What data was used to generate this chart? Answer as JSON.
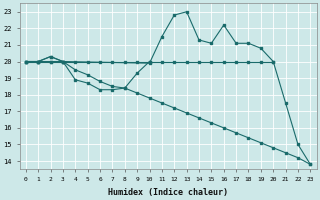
{
  "xlabel": "Humidex (Indice chaleur)",
  "bg_color": "#cde8e8",
  "grid_color": "#b0d4d4",
  "line_color": "#1a6b6b",
  "xlim": [
    -0.5,
    23.5
  ],
  "ylim": [
    13.5,
    23.5
  ],
  "yticks": [
    14,
    15,
    16,
    17,
    18,
    19,
    20,
    21,
    22,
    23
  ],
  "xticks": [
    0,
    1,
    2,
    3,
    4,
    5,
    6,
    7,
    8,
    9,
    10,
    11,
    12,
    13,
    14,
    15,
    16,
    17,
    18,
    19,
    20,
    21,
    22,
    23
  ],
  "line_flat_x": [
    0,
    1,
    2,
    3,
    4,
    5,
    6,
    7,
    8,
    9,
    10,
    11,
    12,
    13,
    14,
    15,
    16,
    17,
    18,
    19,
    20
  ],
  "line_flat_y": [
    20,
    20,
    20,
    20,
    20,
    20,
    20,
    20,
    20,
    20,
    20,
    20,
    20,
    20,
    20,
    20,
    20,
    20,
    20,
    20,
    20
  ],
  "line_wavy_x": [
    0,
    1,
    2,
    3,
    10,
    11,
    12,
    13,
    14,
    15,
    16,
    17,
    18,
    19,
    20,
    21,
    22,
    23
  ],
  "line_wavy_y": [
    20,
    20,
    20.3,
    20,
    19.9,
    21.5,
    22.8,
    23.0,
    21.3,
    21.1,
    22.2,
    21.1,
    21.1,
    20.8,
    20.0,
    17.5,
    15.0,
    13.8
  ],
  "line_loop_x": [
    0,
    1,
    2,
    3,
    4,
    5,
    6,
    7,
    8,
    9,
    10
  ],
  "line_loop_y": [
    20,
    20,
    20.3,
    20,
    18.9,
    18.7,
    18.3,
    18.3,
    18.4,
    19.3,
    20.0
  ],
  "line_diag_x": [
    0,
    1,
    2,
    3,
    4,
    5,
    6,
    7,
    8,
    9,
    10,
    11,
    12,
    13,
    14,
    15,
    16,
    17,
    18,
    19,
    20,
    21,
    22,
    23
  ],
  "line_diag_y": [
    20,
    20,
    20,
    20,
    19.5,
    19.2,
    18.8,
    18.5,
    18.4,
    18.1,
    17.8,
    17.5,
    17.2,
    16.9,
    16.6,
    16.3,
    16.0,
    15.7,
    15.4,
    15.1,
    14.8,
    14.5,
    14.2,
    13.8
  ]
}
